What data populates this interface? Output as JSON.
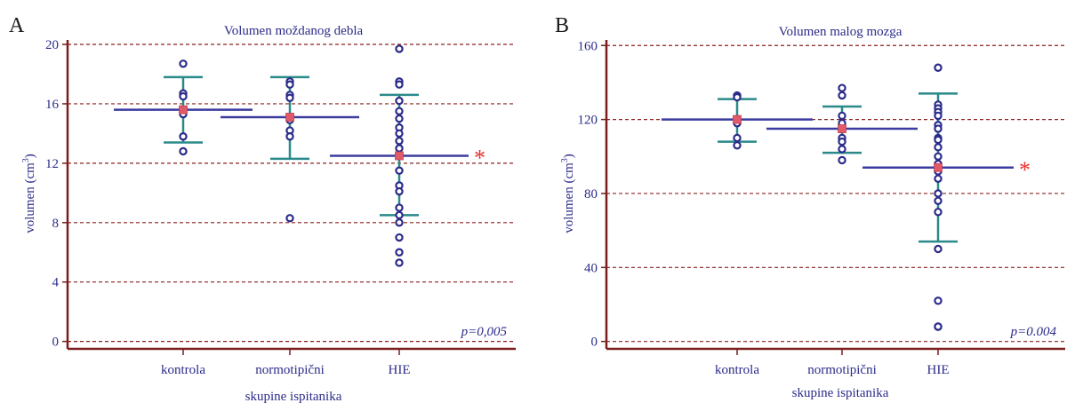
{
  "colors": {
    "axis": "#7a1c1c",
    "grid": "#8b2020",
    "errorbar": "#2a8a8a",
    "mean_line": "#3b3ba0",
    "point_stroke": "#2b2b8a",
    "mean_marker": "#e05a6a",
    "star": "#e53030",
    "text": "#2b2b8a"
  },
  "chart_data": [
    {
      "type": "scatter",
      "panel_letter": "A",
      "title": "Volumen moždanog debla",
      "ylabel_main": "volumen (cm",
      "ylabel_sup": "3",
      "ylabel_close": ")",
      "xlabel": "skupine ispitanika",
      "categories": [
        "kontrola",
        "normotipični",
        "HIE"
      ],
      "yticks": [
        0,
        4,
        8,
        12,
        16,
        20
      ],
      "ylim": [
        -0.5,
        20.3
      ],
      "grid": true,
      "p_value": "p=0,005",
      "significance_marker": "*",
      "series": [
        {
          "category": "kontrola",
          "mean": 15.6,
          "sd_low": 13.4,
          "sd_high": 17.8,
          "points": [
            18.7,
            16.7,
            16.5,
            15.3,
            13.8,
            12.8
          ]
        },
        {
          "category": "normotipični",
          "mean": 15.1,
          "sd_low": 12.3,
          "sd_high": 17.8,
          "points": [
            17.5,
            17.3,
            16.6,
            16.4,
            14.9,
            14.2,
            13.8,
            8.3
          ]
        },
        {
          "category": "HIE",
          "mean": 12.5,
          "sd_low": 8.5,
          "sd_high": 16.6,
          "points": [
            19.7,
            17.5,
            17.3,
            16.2,
            15.5,
            15.0,
            14.4,
            14.0,
            13.5,
            13.0,
            12.5,
            11.5,
            10.5,
            10.1,
            9.0,
            8.5,
            8.0,
            7.0,
            6.0,
            5.3
          ]
        }
      ],
      "significant_category": "HIE"
    },
    {
      "type": "scatter",
      "panel_letter": "B",
      "title": "Volumen malog mozga",
      "ylabel_main": "volumen (cm",
      "ylabel_sup": "3",
      "ylabel_close": ")",
      "xlabel": "skupine ispitanika",
      "categories": [
        "kontrola",
        "normotipični",
        "HIE"
      ],
      "yticks": [
        0,
        40,
        80,
        120,
        160
      ],
      "ylim": [
        -4,
        163
      ],
      "grid": true,
      "p_value": "p=0.004",
      "significance_marker": "*",
      "series": [
        {
          "category": "kontrola",
          "mean": 120,
          "sd_low": 108,
          "sd_high": 131,
          "points": [
            133,
            132,
            120,
            118,
            110,
            106
          ]
        },
        {
          "category": "normotipični",
          "mean": 115,
          "sd_low": 102,
          "sd_high": 127,
          "points": [
            137,
            133,
            122,
            118,
            110,
            108,
            104,
            98
          ]
        },
        {
          "category": "HIE",
          "mean": 94,
          "sd_low": 54,
          "sd_high": 134,
          "points": [
            148,
            128,
            126,
            124,
            122,
            117,
            115,
            110,
            109,
            105,
            100,
            96,
            92,
            88,
            80,
            76,
            70,
            50,
            22,
            8,
            8
          ]
        }
      ],
      "significant_category": "HIE"
    }
  ]
}
